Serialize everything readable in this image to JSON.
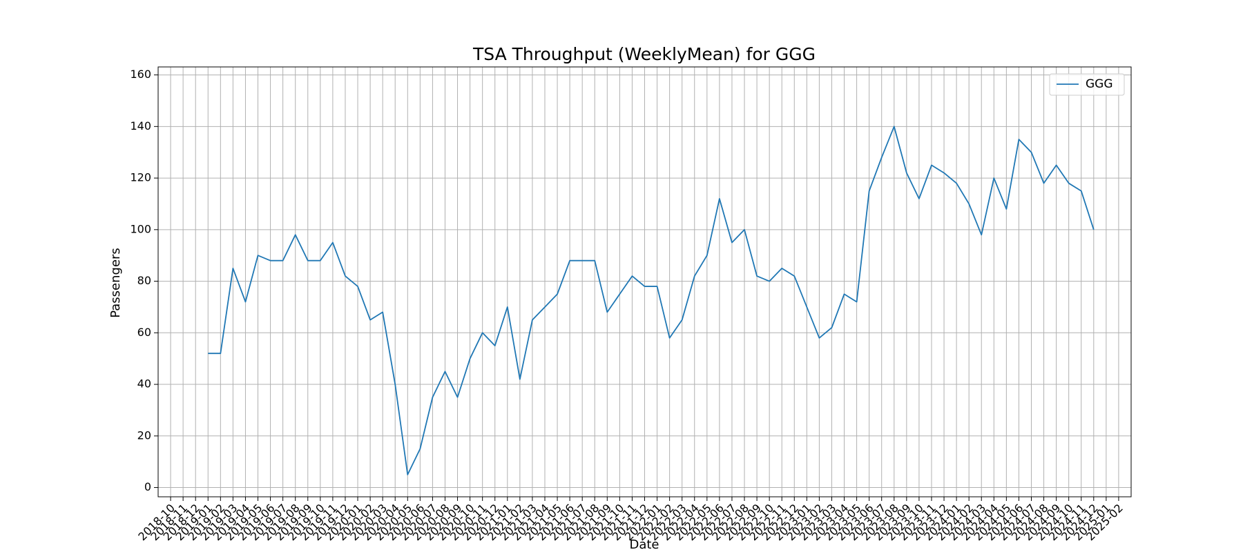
{
  "chart_data": {
    "type": "line",
    "title": "TSA Throughput (WeeklyMean) for GGG",
    "x_label": "Date",
    "y_label": "Passengers",
    "x": [
      "2019-01",
      "2019-02",
      "2019-03",
      "2019-04",
      "2019-05",
      "2019-06",
      "2019-07",
      "2019-08",
      "2019-09",
      "2019-10",
      "2019-11",
      "2019-12",
      "2020-01",
      "2020-02",
      "2020-03",
      "2020-04",
      "2020-05",
      "2020-06",
      "2020-07",
      "2020-08",
      "2020-09",
      "2020-10",
      "2020-11",
      "2020-12",
      "2021-01",
      "2021-02",
      "2021-03",
      "2021-04",
      "2021-05",
      "2021-06",
      "2021-07",
      "2021-08",
      "2021-09",
      "2021-10",
      "2021-11",
      "2021-12",
      "2022-01",
      "2022-02",
      "2022-03",
      "2022-04",
      "2022-05",
      "2022-06",
      "2022-07",
      "2022-08",
      "2022-09",
      "2022-10",
      "2022-11",
      "2022-12",
      "2023-01",
      "2023-02",
      "2023-03",
      "2023-04",
      "2023-05",
      "2023-06",
      "2023-07",
      "2023-08",
      "2023-09",
      "2023-10",
      "2023-11",
      "2023-12",
      "2024-01",
      "2024-02",
      "2024-03",
      "2024-04",
      "2024-05",
      "2024-06",
      "2024-07",
      "2024-08",
      "2024-09",
      "2024-10",
      "2024-11",
      "2024-12"
    ],
    "series": [
      {
        "name": "GGG",
        "color": "#1f77b4",
        "values": [
          52,
          52,
          85,
          72,
          90,
          88,
          88,
          98,
          88,
          88,
          95,
          82,
          78,
          65,
          68,
          40,
          5,
          15,
          35,
          45,
          35,
          50,
          60,
          55,
          70,
          42,
          65,
          70,
          75,
          88,
          88,
          88,
          68,
          75,
          82,
          78,
          78,
          58,
          65,
          82,
          90,
          112,
          95,
          100,
          82,
          80,
          85,
          82,
          70,
          58,
          62,
          75,
          72,
          115,
          128,
          140,
          122,
          112,
          125,
          122,
          118,
          110,
          98,
          120,
          108,
          135,
          130,
          118,
          125,
          118,
          115,
          100
        ]
      }
    ],
    "xlim": [
      "2018-09",
      "2025-03"
    ],
    "xticks": [
      "2018-10",
      "2018-11",
      "2018-12",
      "2019-01",
      "2019-02",
      "2019-03",
      "2019-04",
      "2019-05",
      "2019-06",
      "2019-07",
      "2019-08",
      "2019-09",
      "2019-10",
      "2019-11",
      "2019-12",
      "2020-01",
      "2020-02",
      "2020-03",
      "2020-04",
      "2020-05",
      "2020-06",
      "2020-07",
      "2020-08",
      "2020-09",
      "2020-10",
      "2020-11",
      "2020-12",
      "2021-01",
      "2021-02",
      "2021-03",
      "2021-04",
      "2021-05",
      "2021-06",
      "2021-07",
      "2021-08",
      "2021-09",
      "2021-10",
      "2021-11",
      "2021-12",
      "2022-01",
      "2022-02",
      "2022-03",
      "2022-04",
      "2022-05",
      "2022-06",
      "2022-07",
      "2022-08",
      "2022-09",
      "2022-10",
      "2022-11",
      "2022-12",
      "2023-01",
      "2023-02",
      "2023-03",
      "2023-04",
      "2023-05",
      "2023-06",
      "2023-07",
      "2023-08",
      "2023-09",
      "2023-10",
      "2023-11",
      "2023-12",
      "2024-01",
      "2024-02",
      "2024-03",
      "2024-04",
      "2024-05",
      "2024-06",
      "2024-07",
      "2024-08",
      "2024-09",
      "2024-10",
      "2024-11",
      "2024-12",
      "2025-01",
      "2025-02"
    ],
    "ylim": [
      -3.6,
      163.1
    ],
    "yticks": [
      0,
      20,
      40,
      60,
      80,
      100,
      120,
      140,
      160
    ],
    "grid": true,
    "legend": "upper right"
  }
}
